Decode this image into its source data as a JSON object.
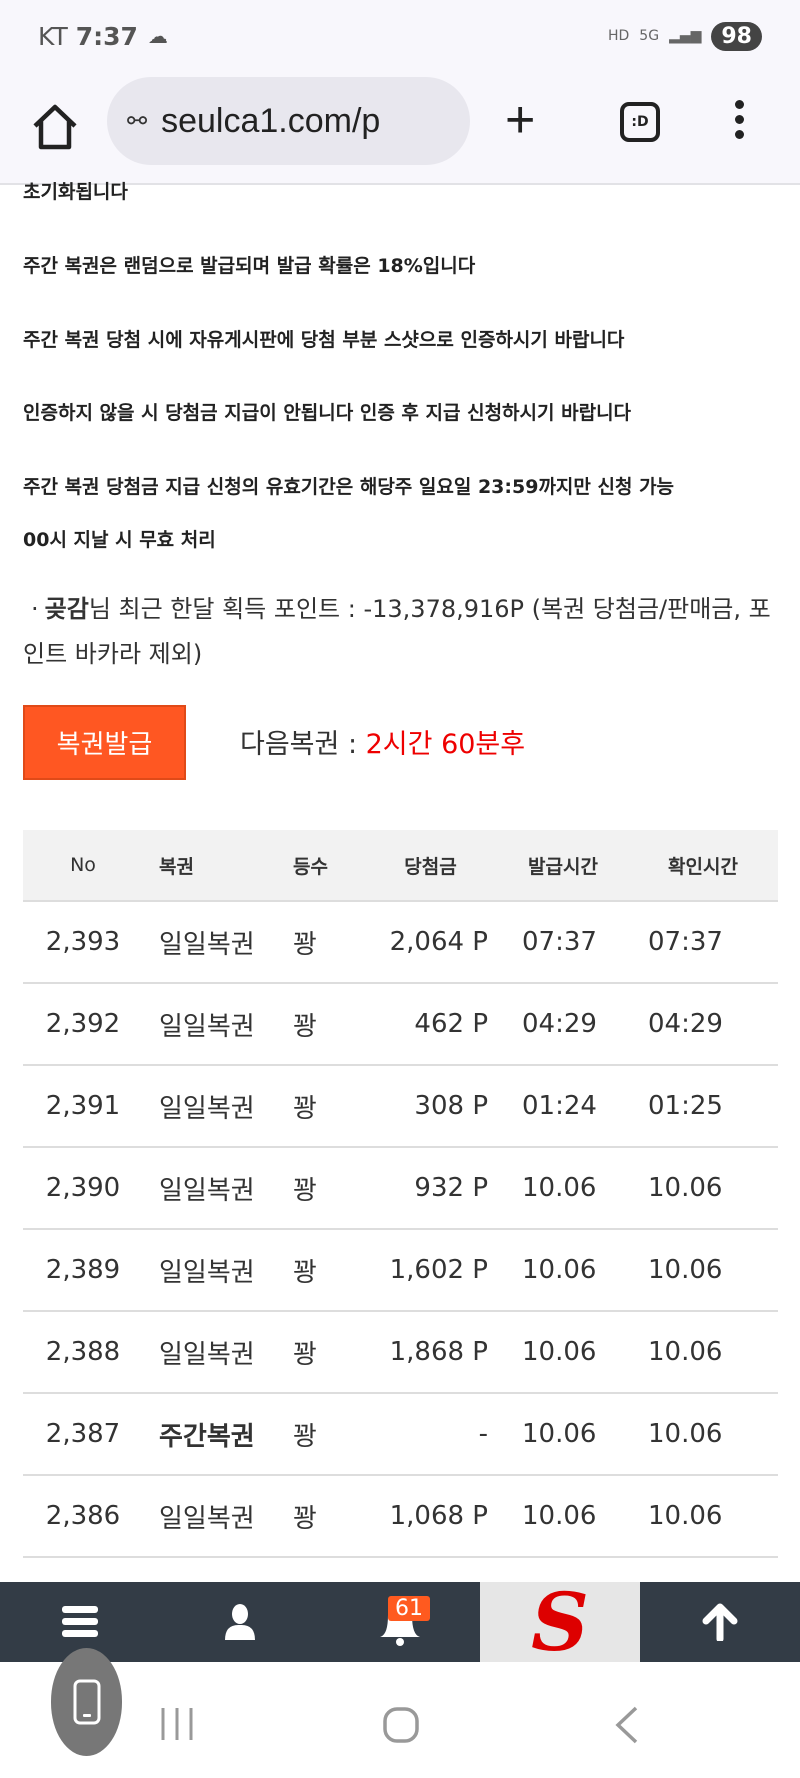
{
  "status_bar": {
    "carrier": "KT",
    "time": "7:37",
    "battery": "98",
    "icons": [
      "weather-cloud-sun-icon",
      "hd-voice-icon",
      "5g-icon",
      "signal-icon",
      "battery-icon"
    ]
  },
  "browser": {
    "url": "seulca1.com/p",
    "tabs_label": ":D"
  },
  "notes": [
    "초기화됩니다",
    "주간 복권은 랜덤으로 발급되며 발급 확률은 18%입니다",
    "주간 복권 당첨 시에 자유게시판에 당첨 부분 스샷으로 인증하시기 바랍니다",
    "인증하지 않을 시 당첨금 지급이 안됩니다 인증 후 지급 신청하시기 바랍니다",
    "주간 복권 당첨금 지급 신청의 유효기간은 해당주 일요일 23:59까지만 신청 가능",
    "00시 지날 시 무효 처리"
  ],
  "points": {
    "bullet": "·",
    "user": "곶감",
    "text": "님 최근 한달 획득 포인트 : -13,378,916P (복권 당첨금/판매금, 포인트 바카라 제외)"
  },
  "issue_button": "복권발급",
  "next": {
    "label": "다음복권 : ",
    "value": "2시간 60분후"
  },
  "table": {
    "headers": [
      "No",
      "복권",
      "등수",
      "당첨금",
      "발급시간",
      "확인시간"
    ],
    "rows": [
      [
        "2,393",
        "일일복권",
        "꽝",
        "2,064 P",
        "07:37",
        "07:37"
      ],
      [
        "2,392",
        "일일복권",
        "꽝",
        "462 P",
        "04:29",
        "04:29"
      ],
      [
        "2,391",
        "일일복권",
        "꽝",
        "308 P",
        "01:24",
        "01:25"
      ],
      [
        "2,390",
        "일일복권",
        "꽝",
        "932 P",
        "10.06",
        "10.06"
      ],
      [
        "2,389",
        "일일복권",
        "꽝",
        "1,602 P",
        "10.06",
        "10.06"
      ],
      [
        "2,388",
        "일일복권",
        "꽝",
        "1,868 P",
        "10.06",
        "10.06"
      ],
      [
        "2,387",
        "주간복권",
        "꽝",
        "-",
        "10.06",
        "10.06"
      ],
      [
        "2,386",
        "일일복권",
        "꽝",
        "1,068 P",
        "10.06",
        "10.06"
      ]
    ]
  },
  "bottom_nav": {
    "notification_count": "61",
    "logo_letter": "S"
  },
  "colors": {
    "accent": "#ff5722",
    "red": "#e00000",
    "nav_bg": "#333c46"
  }
}
